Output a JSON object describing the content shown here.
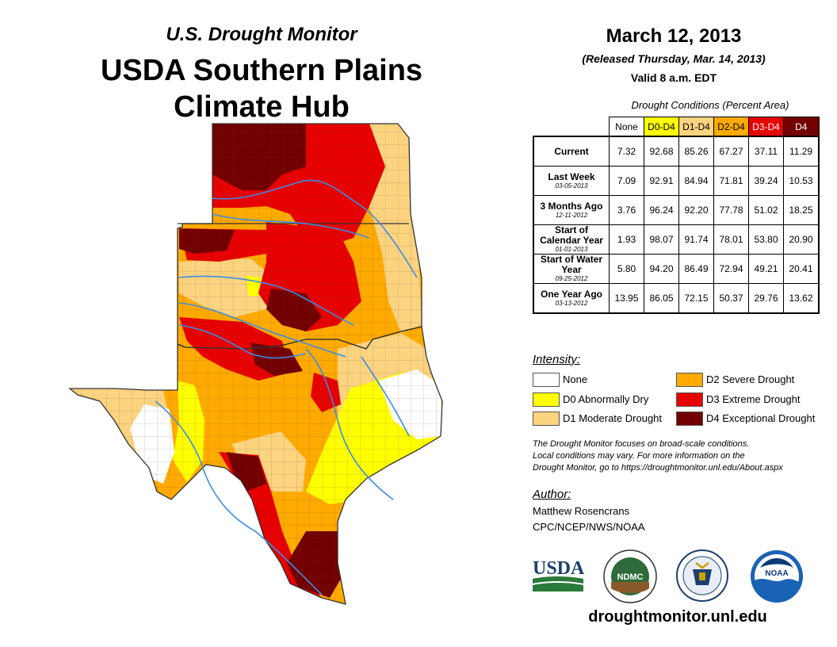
{
  "header": {
    "monitor": "U.S. Drought Monitor",
    "region_line1": "USDA Southern Plains",
    "region_line2": "Climate Hub"
  },
  "info": {
    "date": "March 12, 2013",
    "released": "(Released Thursday, Mar. 14, 2013)",
    "valid": "Valid 8 a.m. EDT"
  },
  "stats": {
    "title": "Drought Conditions (Percent Area)",
    "columns": [
      "None",
      "D0-D4",
      "D1-D4",
      "D2-D4",
      "D3-D4",
      "D4"
    ],
    "column_colors": [
      "#ffffff",
      "#ffff00",
      "#fcd37f",
      "#ffaa00",
      "#e60000",
      "#730000"
    ],
    "rows": [
      {
        "label": "Current",
        "date": "",
        "values": [
          "7.32",
          "92.68",
          "85.26",
          "67.27",
          "37.11",
          "11.29"
        ]
      },
      {
        "label": "Last Week",
        "date": "03-05-2013",
        "values": [
          "7.09",
          "92.91",
          "84.94",
          "71.81",
          "39.24",
          "10.53"
        ]
      },
      {
        "label": "3 Months Ago",
        "date": "12-11-2012",
        "values": [
          "3.76",
          "96.24",
          "92.20",
          "77.78",
          "51.02",
          "18.25"
        ]
      },
      {
        "label": "Start of Calendar Year",
        "date": "01-01-2013",
        "values": [
          "1.93",
          "98.07",
          "91.74",
          "78.01",
          "53.80",
          "20.90"
        ]
      },
      {
        "label": "Start of Water Year",
        "date": "09-25-2012",
        "values": [
          "5.80",
          "94.20",
          "86.49",
          "72.94",
          "49.21",
          "20.41"
        ]
      },
      {
        "label": "One Year Ago",
        "date": "03-13-2012",
        "values": [
          "13.95",
          "86.05",
          "72.15",
          "50.37",
          "29.76",
          "13.62"
        ]
      }
    ]
  },
  "legend": {
    "title": "Intensity:",
    "items": [
      {
        "label": "None",
        "color": "#ffffff"
      },
      {
        "label": "D0 Abnormally Dry",
        "color": "#ffff00"
      },
      {
        "label": "D1 Moderate Drought",
        "color": "#fcd37f"
      },
      {
        "label": "D2 Severe Drought",
        "color": "#ffaa00"
      },
      {
        "label": "D3 Extreme Drought",
        "color": "#e60000"
      },
      {
        "label": "D4 Exceptional Drought",
        "color": "#730000"
      }
    ]
  },
  "note": {
    "line1": "The Drought Monitor focuses on broad-scale conditions.",
    "line2": "Local conditions may vary. For more information on the",
    "line3": "Drought Monitor, go to https://droughtmonitor.unl.edu/About.aspx"
  },
  "author": {
    "title": "Author:",
    "name": "Matthew Rosencrans",
    "org": "CPC/NCEP/NWS/NOAA"
  },
  "logos": {
    "usda": "USDA",
    "ndmc": "NDMC",
    "noaa": "NOAA"
  },
  "footer": {
    "url": "droughtmonitor.unl.edu"
  },
  "colors": {
    "river": "#3a8ee6",
    "d4": "#730000",
    "d3": "#e60000",
    "d2": "#ffaa00",
    "d1": "#fcd37f",
    "d0": "#ffff00"
  }
}
